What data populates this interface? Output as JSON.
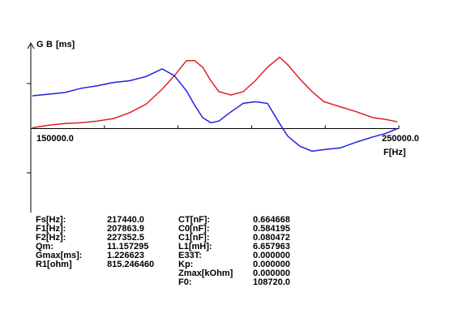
{
  "chart_data": {
    "type": "line",
    "axis_label_parts": [
      {
        "text": "G",
        "color": "#e02020"
      },
      {
        "text": "B",
        "color": "#2020e0"
      },
      {
        "text": "[ms]",
        "color": "#000000"
      }
    ],
    "x_label": "F[Hz]",
    "x": [
      150400,
      154800,
      159300,
      163700,
      168100,
      172500,
      176900,
      181300,
      185700,
      189000,
      192300,
      194500,
      196700,
      198900,
      201100,
      204400,
      207700,
      211000,
      214300,
      217600,
      219800,
      223100,
      226400,
      229700,
      234100,
      238500,
      242900,
      246300,
      249600
    ],
    "series": [
      {
        "name": "G",
        "color": "#e02020",
        "values": [
          0.01,
          0.04,
          0.06,
          0.07,
          0.09,
          0.12,
          0.19,
          0.29,
          0.47,
          0.63,
          0.81,
          0.81,
          0.73,
          0.57,
          0.44,
          0.4,
          0.44,
          0.57,
          0.73,
          0.85,
          0.76,
          0.59,
          0.44,
          0.32,
          0.26,
          0.2,
          0.13,
          0.11,
          0.08
        ]
      },
      {
        "name": "B",
        "color": "#2020e0",
        "values": [
          0.39,
          0.41,
          0.43,
          0.48,
          0.51,
          0.55,
          0.57,
          0.62,
          0.71,
          0.63,
          0.45,
          0.28,
          0.13,
          0.07,
          0.09,
          0.2,
          0.3,
          0.32,
          0.3,
          0.06,
          -0.09,
          -0.21,
          -0.27,
          -0.25,
          -0.23,
          -0.16,
          -0.1,
          -0.06,
          0.0
        ]
      }
    ],
    "xlim": [
      150000,
      250000
    ],
    "xticks": [
      {
        "value": 150000,
        "label": "150000.0"
      },
      {
        "value": 250000,
        "label": "250000.0"
      }
    ],
    "xminorticks": [
      170000,
      190000,
      210000,
      230000
    ],
    "ylim": [
      -1,
      1
    ]
  },
  "parameters": {
    "left": [
      [
        "Fs[Hz]:",
        "217440.0"
      ],
      [
        "F1[Hz]:",
        "207863.9"
      ],
      [
        "F2[Hz]:",
        "227352.5"
      ],
      [
        "Qm:",
        "11.157295"
      ],
      [
        "Gmax[ms]:",
        "1.226623"
      ],
      [
        "R1[ohm]",
        "815.246460"
      ]
    ],
    "right": [
      [
        "CT[nF]:",
        "0.664668"
      ],
      [
        "C0[nF]:",
        "0.584195"
      ],
      [
        "C1[nF]:",
        "0.080472"
      ],
      [
        "L1[mH]:",
        "6.657963"
      ],
      [
        "E33T:",
        "0.000000"
      ],
      [
        "Kp:",
        "0.000000"
      ],
      [
        "Zmax[kOhm]",
        "0.000000"
      ],
      [
        "F0:",
        "108720.0"
      ]
    ]
  }
}
